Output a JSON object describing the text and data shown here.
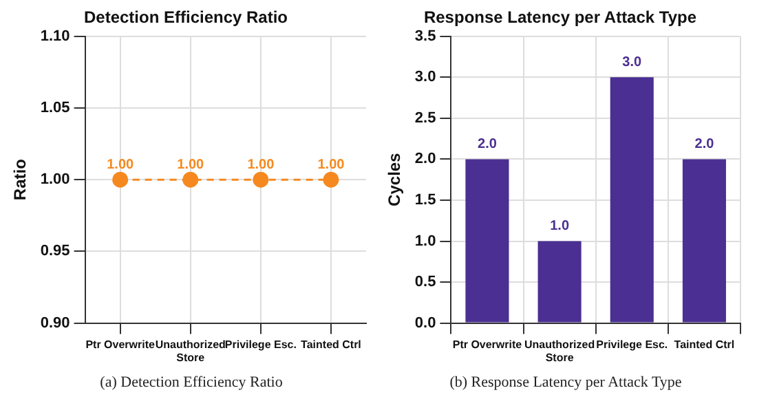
{
  "chart_data": [
    {
      "type": "line",
      "title": "Detection Efficiency Ratio",
      "ylabel": "Ratio",
      "categories": [
        "Ptr Overwrite",
        "Unauthorized Store",
        "Privilege Esc.",
        "Tainted Ctrl"
      ],
      "series": [
        {
          "color": "#f5891f",
          "values": [
            1.0,
            1.0,
            1.0,
            1.0
          ],
          "value_labels": [
            "1.00",
            "1.00",
            "1.00",
            "1.00"
          ]
        }
      ],
      "ylim": [
        0.9,
        1.1
      ],
      "yticks": [
        {
          "value": 0.9,
          "label": "0.90"
        },
        {
          "value": 0.95,
          "label": "0.95"
        },
        {
          "value": 1.0,
          "label": "1.00"
        },
        {
          "value": 1.05,
          "label": "1.05"
        },
        {
          "value": 1.1,
          "label": "1.10"
        }
      ],
      "grid": true,
      "marker": "circle",
      "line_style": "dashed",
      "annotations": [
        "(a) Detection Efficiency Ratio"
      ]
    },
    {
      "type": "bar",
      "title": "Response Latency per Attack Type",
      "ylabel": "Cycles",
      "categories": [
        "Ptr Overwrite",
        "Unauthorized Store",
        "Privilege Esc.",
        "Tainted Ctrl"
      ],
      "series": [
        {
          "color": "#4b2f92",
          "values": [
            2,
            1,
            3,
            2
          ],
          "value_labels": [
            "2.0",
            "1.0",
            "3.0",
            "2.0"
          ]
        }
      ],
      "ylim": [
        0,
        3.5
      ],
      "yticks": [
        {
          "value": 0,
          "label": "0.0"
        },
        {
          "value": 0.5,
          "label": "0.5"
        },
        {
          "value": 1,
          "label": "1.0"
        },
        {
          "value": 1.5,
          "label": "1.5"
        },
        {
          "value": 2,
          "label": "2.0"
        },
        {
          "value": 2.5,
          "label": "2.5"
        },
        {
          "value": 3,
          "label": "3.0"
        },
        {
          "value": 3.5,
          "label": "3.5"
        }
      ],
      "grid": true,
      "annotations": [
        "(b) Response Latency per Attack Type"
      ]
    }
  ]
}
